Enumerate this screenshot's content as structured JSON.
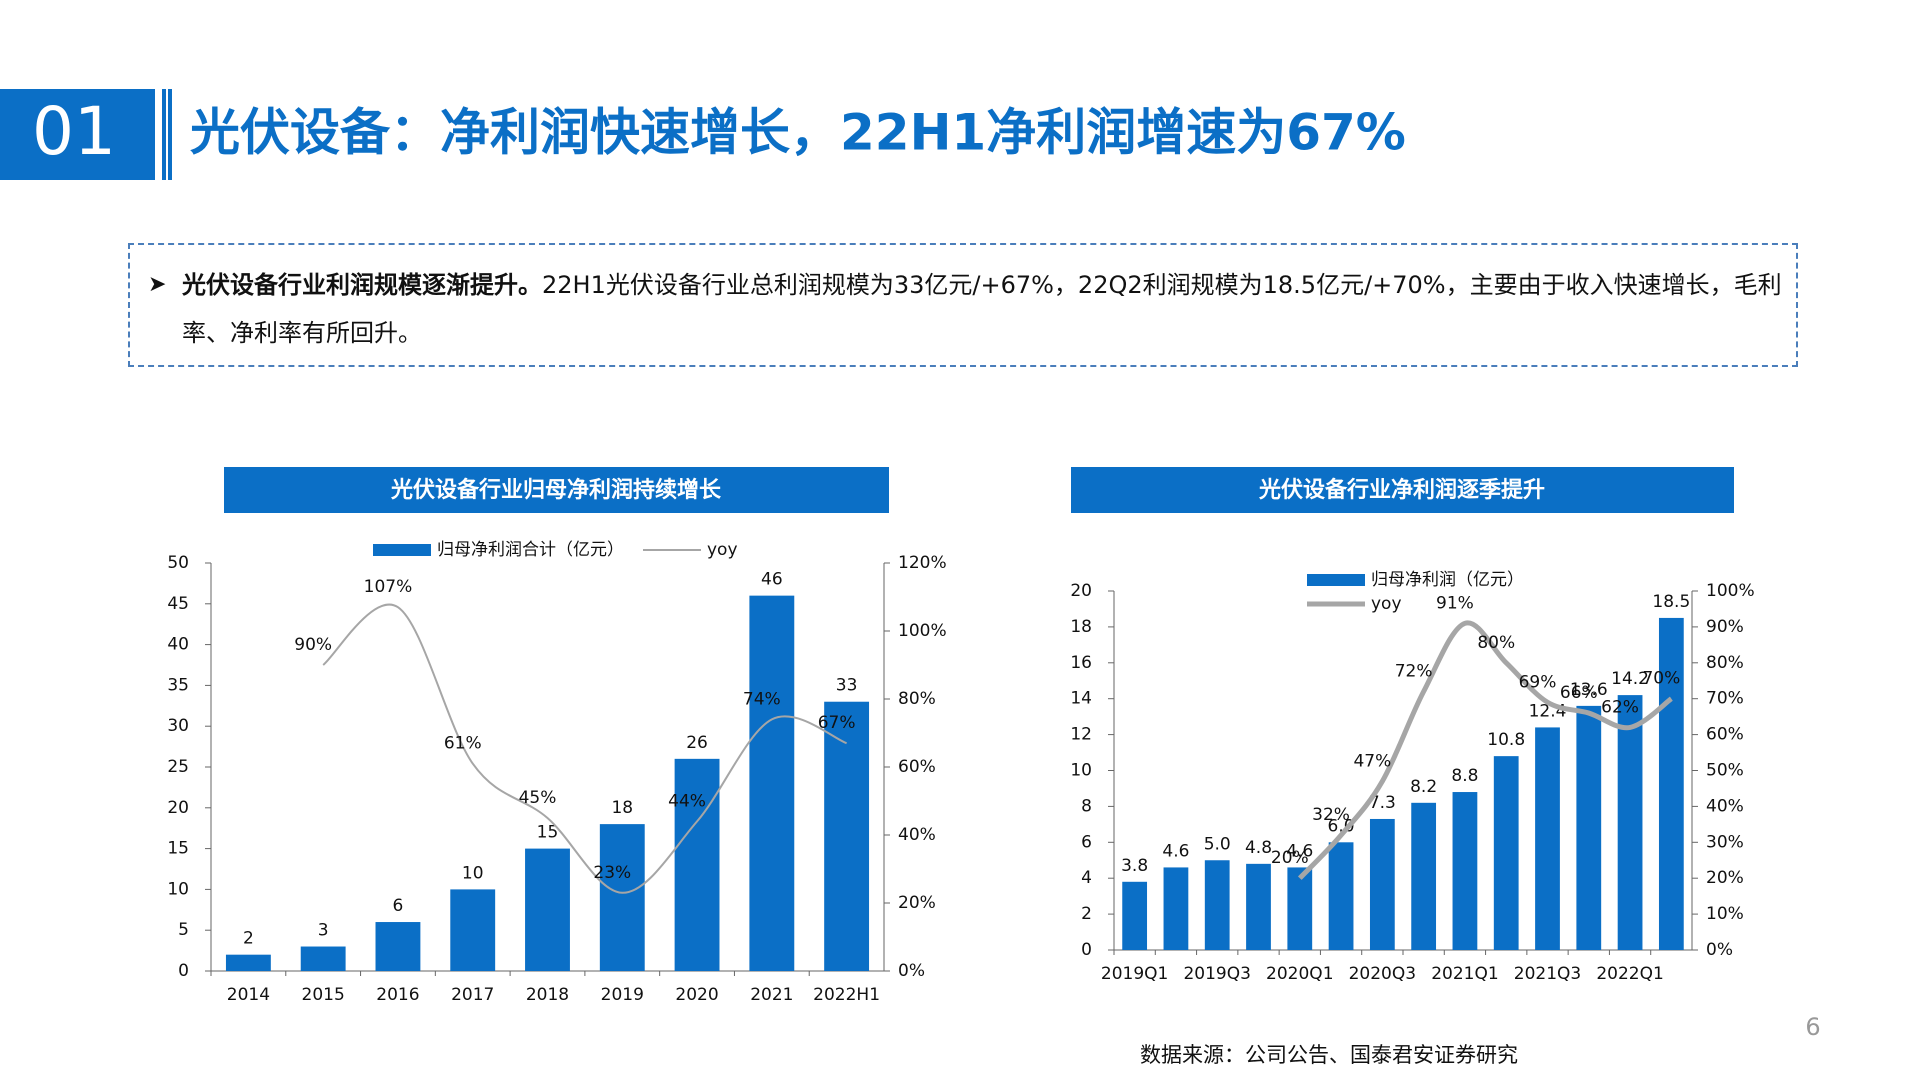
{
  "header": {
    "section": "01",
    "title": "光伏设备：净利润快速增长，22H1净利润增速为67%"
  },
  "summary": {
    "bold": "光伏设备行业利润规模逐渐提升。",
    "text": "22H1光伏设备行业总利润规模为33亿元/+67%，22Q2利润规模为18.5亿元/+70%，主要由于收入快速增长，毛利率、净利率有所回升。"
  },
  "footer": {
    "source": "数据来源：公司公告、国泰君安证券研究",
    "page": "6"
  },
  "chart_data": [
    {
      "type": "bar",
      "title": "光伏设备行业归母净利润持续增长",
      "categories": [
        "2014",
        "2015",
        "2016",
        "2017",
        "2018",
        "2019",
        "2020",
        "2021",
        "2022H1"
      ],
      "series": [
        {
          "name": "归母净利润合计（亿元）",
          "color": "#0b6fc6",
          "values": [
            2,
            3,
            6,
            10,
            15,
            18,
            26,
            46,
            33
          ]
        },
        {
          "name": "yoy",
          "color": "#a6a6a6",
          "axis": "y2",
          "type": "line",
          "values": [
            null,
            90,
            107,
            61,
            45,
            23,
            44,
            74,
            67
          ],
          "value_labels": [
            null,
            "90%",
            "107%",
            "61%",
            "45%",
            "23%",
            "44%",
            "74%",
            "67%"
          ]
        }
      ],
      "ylim": [
        0,
        50
      ],
      "yticks": [
        0,
        5,
        10,
        15,
        20,
        25,
        30,
        35,
        40,
        45,
        50
      ],
      "y2lim": [
        0,
        120
      ],
      "y2ticks": [
        {
          "value": 0,
          "label": "0%"
        },
        {
          "value": 20,
          "label": "20%"
        },
        {
          "value": 40,
          "label": "40%"
        },
        {
          "value": 60,
          "label": "60%"
        },
        {
          "value": 80,
          "label": "80%"
        },
        {
          "value": 100,
          "label": "100%"
        },
        {
          "value": 120,
          "label": "120%"
        }
      ],
      "line_width": 2
    },
    {
      "type": "bar",
      "title": "光伏设备行业净利润逐季提升",
      "categories": [
        "2019Q1",
        null,
        "2019Q3",
        null,
        "2020Q1",
        null,
        "2020Q3",
        null,
        "2021Q1",
        null,
        "2021Q3",
        null,
        "2022Q1",
        null
      ],
      "series": [
        {
          "name": "归母净利润（亿元）",
          "color": "#0b6fc6",
          "values": [
            3.8,
            4.6,
            5.0,
            4.8,
            4.6,
            6.0,
            7.3,
            8.2,
            8.8,
            10.8,
            12.4,
            13.6,
            14.2,
            18.5
          ],
          "value_labels": [
            "3.8",
            "4.6",
            "5.0",
            "4.8",
            "4.6",
            "6.0",
            "7.3",
            "8.2",
            "8.8",
            "10.8",
            "12.4",
            "13.6",
            "14.2",
            "18.5"
          ]
        },
        {
          "name": "yoy",
          "color": "#a6a6a6",
          "axis": "y2",
          "type": "line",
          "values": [
            null,
            null,
            null,
            null,
            20,
            32,
            47,
            72,
            91,
            80,
            69,
            66,
            62,
            70
          ],
          "value_labels": [
            null,
            null,
            null,
            null,
            "20%",
            "32%",
            "47%",
            "72%",
            "91%",
            "80%",
            "69%",
            "66%",
            "62%",
            "70%"
          ]
        }
      ],
      "ylim": [
        0,
        20
      ],
      "yticks": [
        0,
        2,
        4,
        6,
        8,
        10,
        12,
        14,
        16,
        18,
        20
      ],
      "y2lim": [
        0,
        100
      ],
      "y2ticks": [
        {
          "value": 0,
          "label": "0%"
        },
        {
          "value": 10,
          "label": "10%"
        },
        {
          "value": 20,
          "label": "20%"
        },
        {
          "value": 30,
          "label": "30%"
        },
        {
          "value": 40,
          "label": "40%"
        },
        {
          "value": 50,
          "label": "50%"
        },
        {
          "value": 60,
          "label": "60%"
        },
        {
          "value": 70,
          "label": "70%"
        },
        {
          "value": 80,
          "label": "80%"
        },
        {
          "value": 90,
          "label": "90%"
        },
        {
          "value": 100,
          "label": "100%"
        }
      ],
      "line_width": 5
    }
  ]
}
